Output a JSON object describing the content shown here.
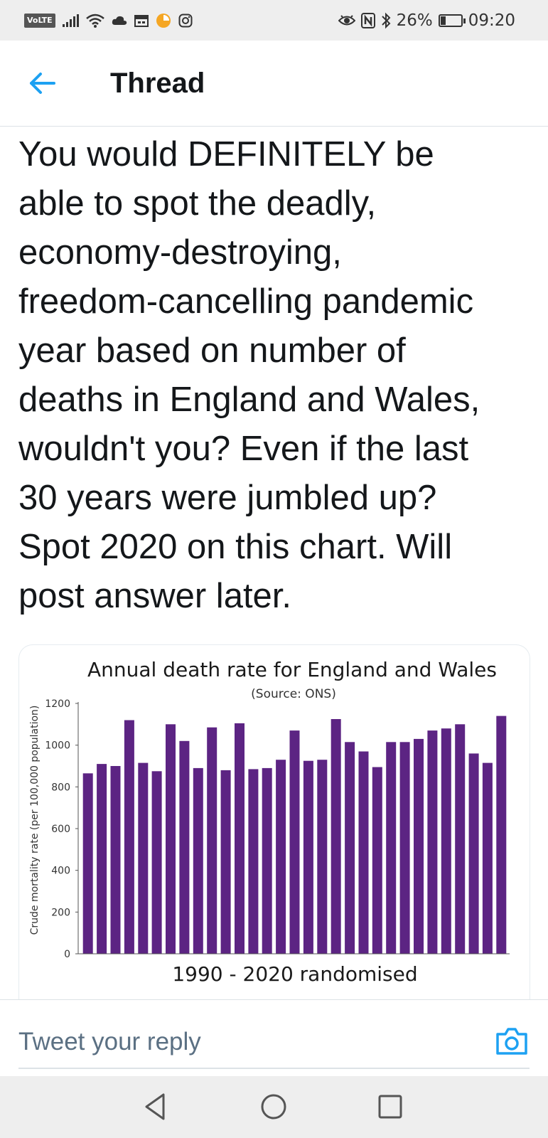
{
  "status_bar": {
    "volte": "VoLTE",
    "battery_percent": "26%",
    "battery_level": 0.26,
    "time": "09:20",
    "icons": [
      "signal-icon",
      "wifi-icon",
      "cloud-icon",
      "calendar-icon",
      "timer-icon",
      "instagram-icon",
      "eye-icon",
      "nfc-icon",
      "bluetooth-icon",
      "battery-icon"
    ]
  },
  "header": {
    "title": "Thread",
    "back_icon": "arrow-left-icon",
    "accent_color": "#1da1f2"
  },
  "tweet": {
    "text": "You would DEFINITELY be\nable to spot the deadly,\neconomy-destroying,\nfreedom-cancelling pandemic\nyear based on number of\ndeaths in England and Wales,\nwouldn't you? Even if the last\n30 years were jumbled up?\nSpot 2020 on this chart. Will\npost answer later."
  },
  "chart_data": {
    "type": "bar",
    "title": "Annual death rate for England and Wales",
    "subtitle": "(Source: ONS)",
    "ylabel": "Crude mortality rate (per 100,000 population)",
    "xlabel": "1990 - 2020 randomised",
    "ylim": [
      0,
      1200
    ],
    "yticks": [
      "0",
      "200",
      "400",
      "600",
      "800",
      "1000",
      "1200"
    ],
    "grid": false,
    "bar_color": "#5c2483",
    "values": [
      865,
      910,
      900,
      1120,
      915,
      875,
      1100,
      1020,
      890,
      1085,
      880,
      1105,
      885,
      890,
      930,
      1070,
      925,
      930,
      1125,
      1015,
      970,
      895,
      1015,
      1015,
      1030,
      1070,
      1080,
      1100,
      960,
      915,
      1140
    ]
  },
  "reply": {
    "placeholder": "Tweet your reply",
    "camera_icon": "camera-icon"
  },
  "nav_bar": {
    "icons": [
      "back-triangle-icon",
      "home-circle-icon",
      "recents-square-icon"
    ]
  }
}
